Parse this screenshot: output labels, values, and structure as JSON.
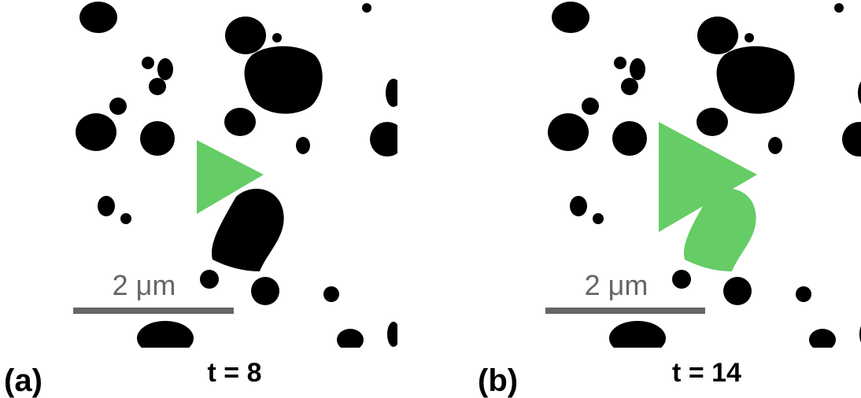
{
  "panels": [
    {
      "label": "(a)",
      "time": "t = 8",
      "scale_bar": "2 μm"
    },
    {
      "label": "(b)",
      "time": "t = 14",
      "scale_bar": "2 μm"
    }
  ]
}
